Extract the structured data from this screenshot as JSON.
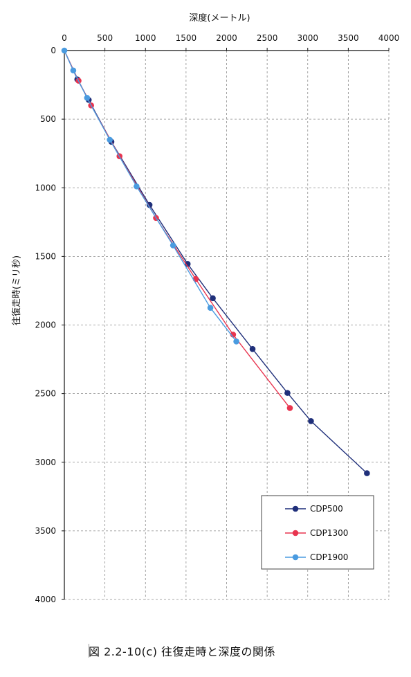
{
  "caption": "図 2.2-10(c) 往復走時と深度の関係",
  "chart_data": {
    "type": "line",
    "xlabel": "深度(メートル)",
    "ylabel": "往復走時(ミリ秒)",
    "xlim": [
      0,
      4000
    ],
    "ylim": [
      0,
      4000
    ],
    "y_inverted": true,
    "x_axis_position": "top",
    "xticks": [
      0,
      500,
      1000,
      1500,
      2000,
      2500,
      3000,
      3500,
      4000
    ],
    "yticks": [
      0,
      500,
      1000,
      1500,
      2000,
      2500,
      3000,
      3500,
      4000
    ],
    "grid": "dashed",
    "legend_position": "bottom-right",
    "series": [
      {
        "name": "CDP500",
        "color": "#1f2f7a",
        "points": [
          [
            0,
            0
          ],
          [
            160,
            210
          ],
          [
            300,
            360
          ],
          [
            580,
            665
          ],
          [
            1050,
            1125
          ],
          [
            1520,
            1555
          ],
          [
            1830,
            1805
          ],
          [
            2320,
            2175
          ],
          [
            2750,
            2495
          ],
          [
            3040,
            2700
          ],
          [
            3730,
            3080
          ]
        ]
      },
      {
        "name": "CDP1300",
        "color": "#e8344f",
        "points": [
          [
            0,
            0
          ],
          [
            175,
            220
          ],
          [
            330,
            400
          ],
          [
            680,
            770
          ],
          [
            1130,
            1220
          ],
          [
            1620,
            1665
          ],
          [
            2080,
            2070
          ],
          [
            2780,
            2605
          ]
        ]
      },
      {
        "name": "CDP1900",
        "color": "#4a9be0",
        "points": [
          [
            0,
            0
          ],
          [
            110,
            145
          ],
          [
            280,
            345
          ],
          [
            560,
            650
          ],
          [
            890,
            990
          ],
          [
            1340,
            1420
          ],
          [
            1800,
            1875
          ],
          [
            2120,
            2120
          ]
        ]
      }
    ]
  }
}
